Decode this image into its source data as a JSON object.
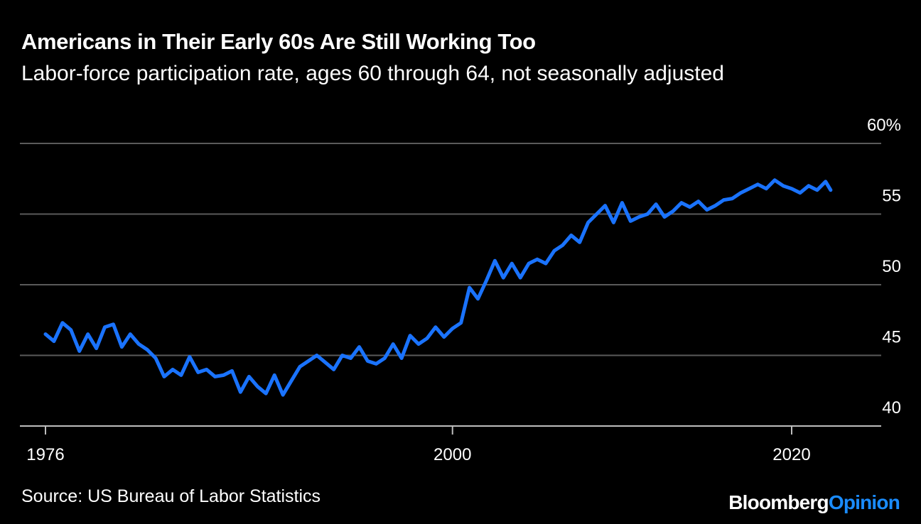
{
  "chart_data": {
    "type": "line",
    "title": "Americans in Their Early 60s Are Still Working Too",
    "subtitle": "Labor-force participation rate, ages 60 through 64, not seasonally adjusted",
    "ylim": [
      40,
      60
    ],
    "xlim": [
      1976,
      2025
    ],
    "grid": true,
    "yticks": [
      {
        "value": 60,
        "label": "60%"
      },
      {
        "value": 55,
        "label": "55"
      },
      {
        "value": 50,
        "label": "50"
      },
      {
        "value": 45,
        "label": "45"
      },
      {
        "value": 40,
        "label": "40"
      }
    ],
    "xticks": [
      {
        "value": 1976,
        "label": "1976"
      },
      {
        "value": 2000,
        "label": "2000"
      },
      {
        "value": 2020,
        "label": "2020"
      }
    ],
    "series": [
      {
        "color": "#1a73ff",
        "x": [
          1976.0,
          1976.5,
          1977.0,
          1977.5,
          1978.0,
          1978.5,
          1979.0,
          1979.5,
          1980.0,
          1980.5,
          1981.0,
          1981.5,
          1982.0,
          1982.5,
          1983.0,
          1983.5,
          1984.0,
          1984.5,
          1985.0,
          1985.5,
          1986.0,
          1986.5,
          1987.0,
          1987.5,
          1988.0,
          1988.5,
          1989.0,
          1989.5,
          1990.0,
          1990.5,
          1991.0,
          1991.5,
          1992.0,
          1992.5,
          1993.0,
          1993.5,
          1994.0,
          1994.5,
          1995.0,
          1995.5,
          1996.0,
          1996.5,
          1997.0,
          1997.5,
          1998.0,
          1998.5,
          1999.0,
          1999.5,
          2000.0,
          2000.5,
          2001.0,
          2001.5,
          2002.0,
          2002.5,
          2003.0,
          2003.5,
          2004.0,
          2004.5,
          2005.0,
          2005.5,
          2006.0,
          2006.5,
          2007.0,
          2007.5,
          2008.0,
          2008.5,
          2009.0,
          2009.5,
          2010.0,
          2010.5,
          2011.0,
          2011.5,
          2012.0,
          2012.5,
          2013.0,
          2013.5,
          2014.0,
          2014.5,
          2015.0,
          2015.5,
          2016.0,
          2016.5,
          2017.0,
          2017.5,
          2018.0,
          2018.5,
          2019.0,
          2019.5,
          2020.0,
          2020.5,
          2021.0,
          2021.5,
          2022.0,
          2022.3
        ],
        "values": [
          46.5,
          46.0,
          47.3,
          46.8,
          45.3,
          46.5,
          45.5,
          47.0,
          47.2,
          45.6,
          46.5,
          45.8,
          45.4,
          44.8,
          43.5,
          44.0,
          43.6,
          44.9,
          43.8,
          44.0,
          43.5,
          43.6,
          43.9,
          42.4,
          43.5,
          42.8,
          42.3,
          43.6,
          42.2,
          43.2,
          44.2,
          44.6,
          45.0,
          44.5,
          44.0,
          45.0,
          44.8,
          45.6,
          44.6,
          44.4,
          44.8,
          45.8,
          44.8,
          46.4,
          45.8,
          46.2,
          47.0,
          46.3,
          46.9,
          47.3,
          49.8,
          49.0,
          50.3,
          51.7,
          50.5,
          51.5,
          50.5,
          51.5,
          51.8,
          51.5,
          52.4,
          52.8,
          53.5,
          53.0,
          54.4,
          55.0,
          55.6,
          54.4,
          55.8,
          54.5,
          54.8,
          55.0,
          55.7,
          54.8,
          55.2,
          55.8,
          55.5,
          55.9,
          55.3,
          55.6,
          56.0,
          56.1,
          56.5,
          56.8,
          57.1,
          56.8,
          57.4,
          57.0,
          56.8,
          56.5,
          57.0,
          56.7,
          57.3,
          56.7
        ]
      }
    ]
  },
  "source": "Source: US Bureau of Labor Statistics",
  "brand": {
    "part1": "Bloomberg",
    "part2": "Opinion"
  }
}
